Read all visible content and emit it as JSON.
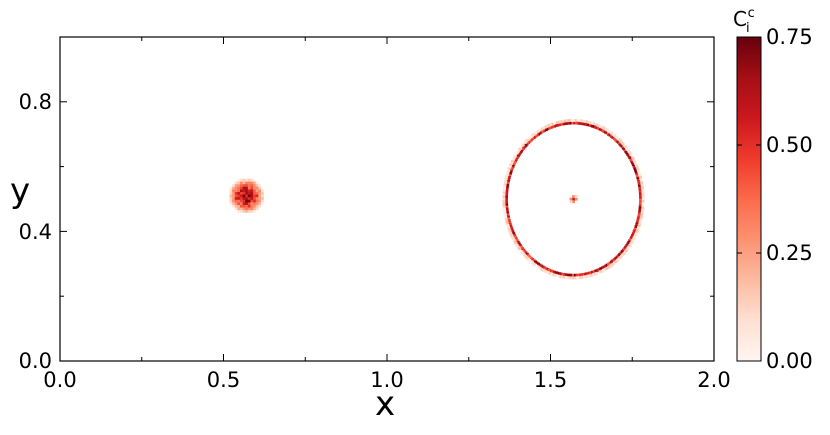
{
  "chart_data": {
    "type": "heatmap",
    "title": "",
    "xlabel": "x",
    "ylabel": "y",
    "xlim": [
      0.0,
      2.0
    ],
    "ylim": [
      0.0,
      1.0
    ],
    "x_ticks": [
      0.0,
      0.5,
      1.0,
      1.5,
      2.0
    ],
    "x_tick_labels": [
      "0.0",
      "0.5",
      "1.0",
      "1.5",
      "2.0"
    ],
    "y_ticks": [
      0.0,
      0.4,
      0.8
    ],
    "y_tick_labels": [
      "0.0",
      "0.4",
      "0.8"
    ],
    "grid": false,
    "colorbar": {
      "label_base": "C",
      "label_sub": "i",
      "label_sup": "c",
      "range": [
        0.0,
        0.75
      ],
      "ticks": [
        0.0,
        0.25,
        0.5,
        0.75
      ],
      "tick_labels": [
        "0.00",
        "0.25",
        "0.50",
        "0.75"
      ],
      "colormap": "Reds",
      "color_min": "#fff5f0",
      "color_mid": "#fb6a4a",
      "color_max": "#67000d"
    },
    "features": [
      {
        "kind": "blob",
        "center": [
          0.57,
          0.51
        ],
        "radius": 0.055,
        "peak_value": 0.75
      },
      {
        "kind": "ring",
        "center": [
          1.57,
          0.5
        ],
        "radius_x": 0.205,
        "radius_y": 0.235,
        "peak_value": 0.7
      },
      {
        "kind": "point",
        "center": [
          1.57,
          0.5
        ],
        "peak_value": 0.6
      }
    ]
  }
}
